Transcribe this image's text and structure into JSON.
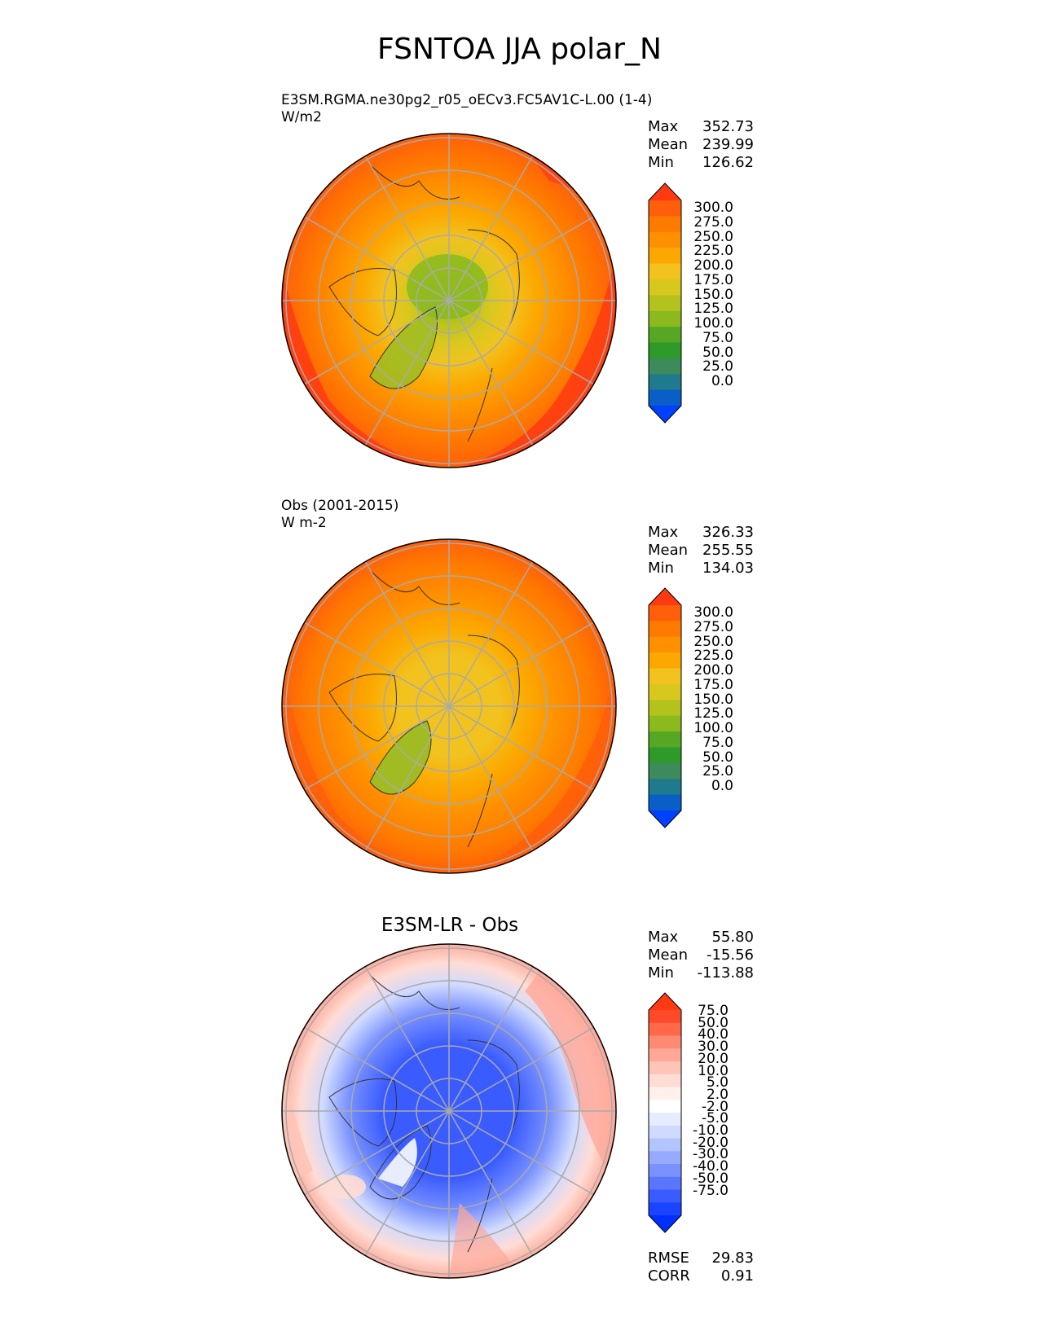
{
  "title": "FSNTOA JJA polar_N",
  "panels": [
    {
      "id": "test",
      "title_line1": "E3SM.RGMA.ne30pg2_r05_oECv3.FC5AV1C-L.00 (1-4)",
      "title_line2": "W/m2",
      "stats": [
        {
          "label": "Max",
          "value": "352.73"
        },
        {
          "label": "Mean",
          "value": "239.99"
        },
        {
          "label": "Min",
          "value": "126.62"
        }
      ],
      "colorbar": {
        "labels": [
          "300.0",
          "275.0",
          "250.0",
          "225.0",
          "200.0",
          "175.0",
          "150.0",
          "125.0",
          "100.0",
          "75.0",
          "50.0",
          "25.0",
          "0.0"
        ],
        "colors": [
          "#ff3a12",
          "#ff5e0a",
          "#ff7a00",
          "#ff9000",
          "#fca800",
          "#f2c21e",
          "#d8c81e",
          "#b4c21e",
          "#8cba1e",
          "#56a824",
          "#2e9a2a",
          "#3d8a5a",
          "#1e7a8c",
          "#0a5ec8",
          "#0040ff"
        ]
      }
    },
    {
      "id": "ref",
      "title_line1": "Obs (2001-2015)",
      "title_line2": "W m-2",
      "stats": [
        {
          "label": "Max",
          "value": "326.33"
        },
        {
          "label": "Mean",
          "value": "255.55"
        },
        {
          "label": "Min",
          "value": "134.03"
        }
      ],
      "colorbar": {
        "labels": [
          "300.0",
          "275.0",
          "250.0",
          "225.0",
          "200.0",
          "175.0",
          "150.0",
          "125.0",
          "100.0",
          "75.0",
          "50.0",
          "25.0",
          "0.0"
        ],
        "colors": [
          "#ff3a12",
          "#ff5e0a",
          "#ff7a00",
          "#ff9000",
          "#fca800",
          "#f2c21e",
          "#d8c81e",
          "#b4c21e",
          "#8cba1e",
          "#56a824",
          "#2e9a2a",
          "#3d8a5a",
          "#1e7a8c",
          "#0a5ec8",
          "#0040ff"
        ]
      }
    },
    {
      "id": "diff",
      "title_center": "E3SM-LR - Obs",
      "stats": [
        {
          "label": "Max",
          "value": "55.80"
        },
        {
          "label": "Mean",
          "value": "-15.56"
        },
        {
          "label": "Min",
          "value": "-113.88"
        }
      ],
      "colorbar": {
        "labels": [
          "75.0",
          "50.0",
          "40.0",
          "30.0",
          "20.0",
          "10.0",
          "5.0",
          "2.0",
          "-2.0",
          "-5.0",
          "-10.0",
          "-20.0",
          "-30.0",
          "-40.0",
          "-50.0",
          "-75.0"
        ],
        "colors": [
          "#ff3a12",
          "#ff4a2a",
          "#ff6848",
          "#ff8a72",
          "#ffa898",
          "#ffc4b8",
          "#ffdcd4",
          "#fff0ec",
          "#ffffff",
          "#e8ecff",
          "#d0daff",
          "#b4c4ff",
          "#96aaff",
          "#7a92ff",
          "#5a76ff",
          "#3a5cff",
          "#1a44ff",
          "#0030ff"
        ]
      },
      "metrics": [
        {
          "label": "RMSE",
          "value": "29.83"
        },
        {
          "label": "CORR",
          "value": "0.91"
        }
      ]
    }
  ]
}
